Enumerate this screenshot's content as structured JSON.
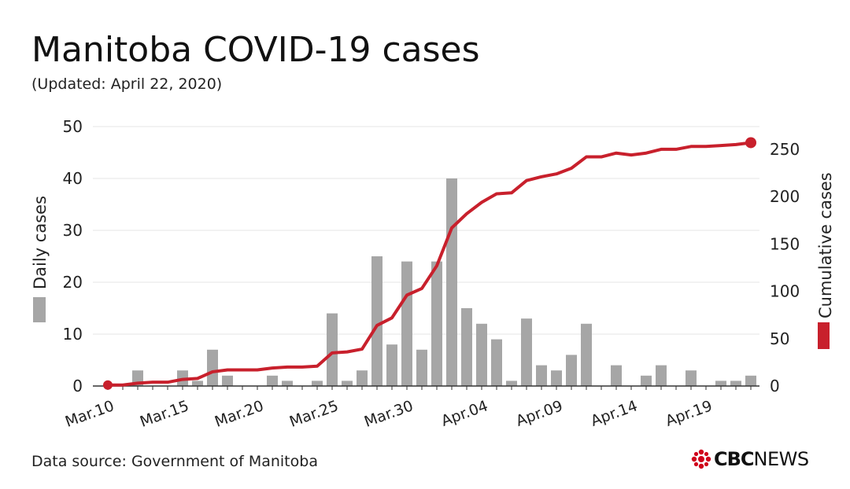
{
  "header": {
    "title": "Manitoba COVID-19 cases",
    "subtitle": "(Updated: April 22, 2020)"
  },
  "footer": {
    "source": "Data source: Government of Manitoba",
    "logo_bold": "CBC",
    "logo_light": "NEWS"
  },
  "colors": {
    "bar": "#a6a6a6",
    "line": "#c8202c",
    "grid": "#e6e6e6",
    "text": "#222222"
  },
  "chart_data": {
    "type": "bar",
    "title": "Manitoba COVID-19 cases",
    "subtitle": "(Updated: April 22, 2020)",
    "xlabel": "",
    "ylabel": "Daily cases",
    "y2label": "Cumulative cases",
    "ylim": [
      0,
      50
    ],
    "y2lim": [
      0,
      274
    ],
    "yticks": [
      0,
      10,
      20,
      30,
      40,
      50
    ],
    "y2ticks": [
      0,
      50,
      100,
      150,
      200,
      250
    ],
    "grid": true,
    "legend": "axis-labels",
    "xtick_labels": [
      "Mar.10",
      "Mar.15",
      "Mar.20",
      "Mar.25",
      "Mar.30",
      "Apr.04",
      "Apr.09",
      "Apr.14",
      "Apr.19"
    ],
    "xtick_label_every": 5,
    "categories": [
      "Mar.10",
      "Mar.11",
      "Mar.12",
      "Mar.13",
      "Mar.14",
      "Mar.15",
      "Mar.16",
      "Mar.17",
      "Mar.18",
      "Mar.19",
      "Mar.20",
      "Mar.21",
      "Mar.22",
      "Mar.23",
      "Mar.24",
      "Mar.25",
      "Mar.26",
      "Mar.27",
      "Mar.28",
      "Mar.29",
      "Mar.30",
      "Mar.31",
      "Apr.01",
      "Apr.02",
      "Apr.03",
      "Apr.04",
      "Apr.05",
      "Apr.06",
      "Apr.07",
      "Apr.08",
      "Apr.09",
      "Apr.10",
      "Apr.11",
      "Apr.12",
      "Apr.13",
      "Apr.14",
      "Apr.15",
      "Apr.16",
      "Apr.17",
      "Apr.18",
      "Apr.19",
      "Apr.20",
      "Apr.21",
      "Apr.22"
    ],
    "series": [
      {
        "name": "Daily cases",
        "type": "bar",
        "axis": "left",
        "values": [
          0,
          0,
          3,
          0,
          0,
          3,
          1,
          7,
          2,
          0,
          0,
          2,
          1,
          0,
          1,
          14,
          1,
          3,
          25,
          8,
          24,
          7,
          24,
          40,
          15,
          12,
          9,
          1,
          13,
          4,
          3,
          6,
          12,
          0,
          4,
          0,
          2,
          4,
          0,
          3,
          0,
          1,
          1,
          2
        ]
      },
      {
        "name": "Cumulative cases",
        "type": "line",
        "axis": "right",
        "values": [
          1,
          1,
          3,
          4,
          4,
          7,
          8,
          15,
          17,
          17,
          17,
          19,
          20,
          20,
          21,
          35,
          36,
          39,
          64,
          72,
          96,
          103,
          127,
          167,
          182,
          194,
          203,
          204,
          217,
          221,
          224,
          230,
          242,
          242,
          246,
          244,
          246,
          250,
          250,
          253,
          253,
          254,
          255,
          257
        ]
      }
    ]
  }
}
